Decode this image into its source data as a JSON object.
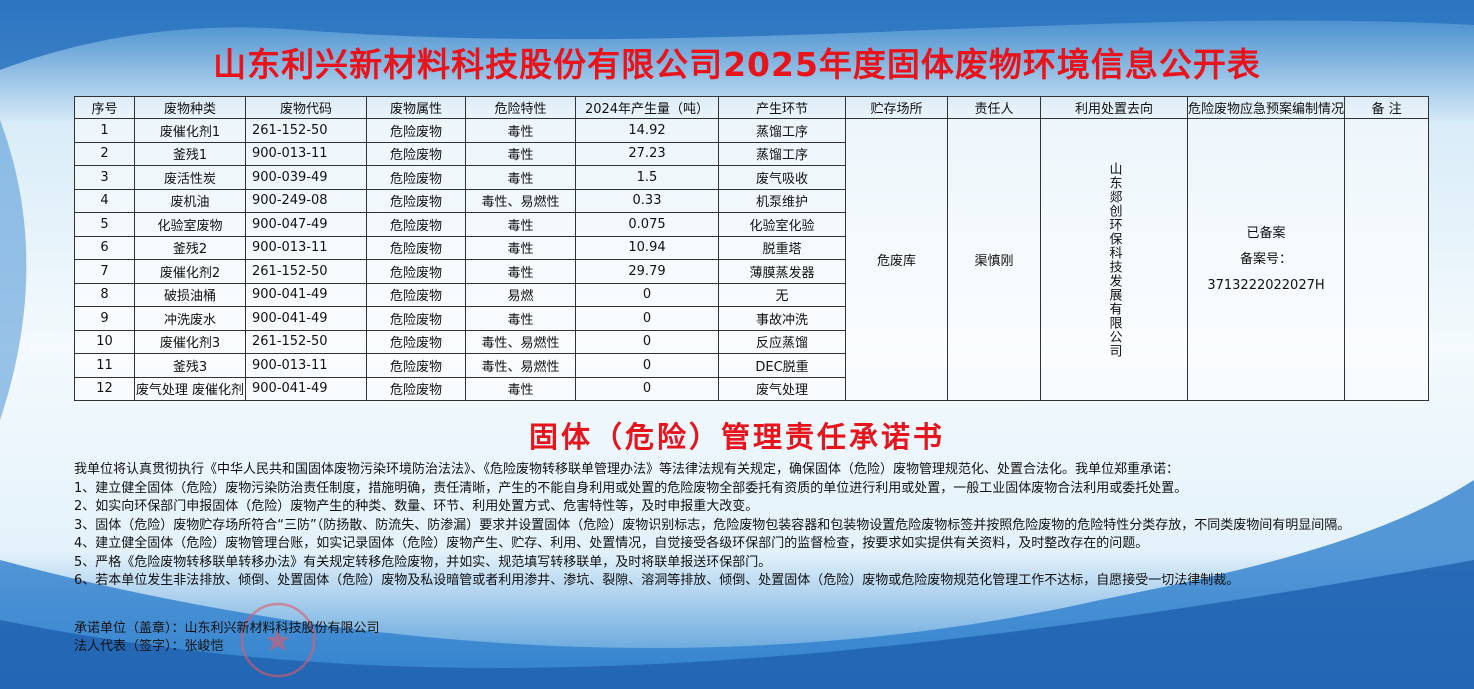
{
  "title": "山东利兴新材料科技股份有限公司2025年度固体废物环境信息公开表",
  "table": {
    "headers": [
      "序号",
      "废物种类",
      "废物代码",
      "废物属性",
      "危险特性",
      "2024年产生量（吨）",
      "产生环节",
      "贮存场所",
      "责任人",
      "利用处置去向",
      "危险废物应急预案编制情况",
      "备 注"
    ],
    "rows": [
      [
        1,
        "废催化剂1",
        "261-152-50",
        "危险废物",
        "毒性",
        14.92,
        "蒸馏工序"
      ],
      [
        2,
        "釜残1",
        "900-013-11",
        "危险废物",
        "毒性",
        27.23,
        "蒸馏工序"
      ],
      [
        3,
        "废活性炭",
        "900-039-49",
        "危险废物",
        "毒性",
        1.5,
        "废气吸收"
      ],
      [
        4,
        "废机油",
        "900-249-08",
        "危险废物",
        "毒性、易燃性",
        0.33,
        "机泵维护"
      ],
      [
        5,
        "化验室废物",
        "900-047-49",
        "危险废物",
        "毒性",
        0.075,
        "化验室化验"
      ],
      [
        6,
        "釜残2",
        "900-013-11",
        "危险废物",
        "毒性",
        10.94,
        "脱重塔"
      ],
      [
        7,
        "废催化剂2",
        "261-152-50",
        "危险废物",
        "毒性",
        29.79,
        "薄膜蒸发器"
      ],
      [
        8,
        "破损油桶",
        "900-041-49",
        "危险废物",
        "易燃",
        0,
        "无"
      ],
      [
        9,
        "冲洗废水",
        "900-041-49",
        "危险废物",
        "毒性",
        0,
        "事故冲洗"
      ],
      [
        10,
        "废催化剂3",
        "261-152-50",
        "危险废物",
        "毒性、易燃性",
        0,
        "反应蒸馏"
      ],
      [
        11,
        "釜残3",
        "900-013-11",
        "危险废物",
        "毒性、易燃性",
        0,
        "DEC脱重"
      ],
      [
        12,
        "废气处理 废催化剂",
        "900-041-49",
        "危险废物",
        "毒性",
        0,
        "废气处理"
      ]
    ],
    "storage": "危废库",
    "responsible": "渠慎刚",
    "disposal": "山东郯创环保科技发展有限公司",
    "plan": [
      "已备案",
      "备案号：",
      "3713222022027H"
    ]
  },
  "commitment": {
    "title": "固体（危险）管理责任承诺书",
    "paragraphs": [
      "我单位将认真贯彻执行《中华人民共和国固体废物污染环境防治法法》、《危险废物转移联单管理办法》等法律法规有关规定，确保固体（危险）废物管理规范化、处置合法化。我单位郑重承诺：",
      "1、建立健全固体（危险）废物污染防治责任制度，措施明确，责任清晰，产生的不能自身利用或处置的危险废物全部委托有资质的单位进行利用或处置，一般工业固体废物合法利用或委托处置。",
      "2、如实向环保部门申报固体（危险）废物产生的种类、数量、环节、利用处置方式、危害特性等，及时申报重大改变。",
      "3、固体（危险）废物贮存场所符合“三防”（防扬散、防流失、防渗漏）要求并设置固体（危险）废物识别标志，危险废物包装容器和包装物设置危险废物标签并按照危险废物的危险特性分类存放，不同类废物间有明显间隔。",
      "4、建立健全固体（危险）废物管理台账，如实记录固体（危险）废物产生、贮存、利用、处置情况，自觉接受各级环保部门的监督检查，按要求如实提供有关资料，及时整改存在的问题。",
      "5、严格《危险废物转移联单转移办法》有关规定转移危险废物，并如实、规范填写转移联单，及时将联单报送环保部门。",
      "6、若本单位发生非法排放、倾倒、处置固体（危险）废物及私设暗管或者利用渗井、渗坑、裂隙、溶洞等排放、倾倒、处置固体（危险）废物或危险废物规范化管理工作不达标，自愿接受一切法律制裁。"
    ]
  },
  "signature": {
    "unit": "承诺单位（盖章）：山东利兴新材料科技股份有限公司",
    "representative": "法人代表（签字）：张峻恺"
  }
}
